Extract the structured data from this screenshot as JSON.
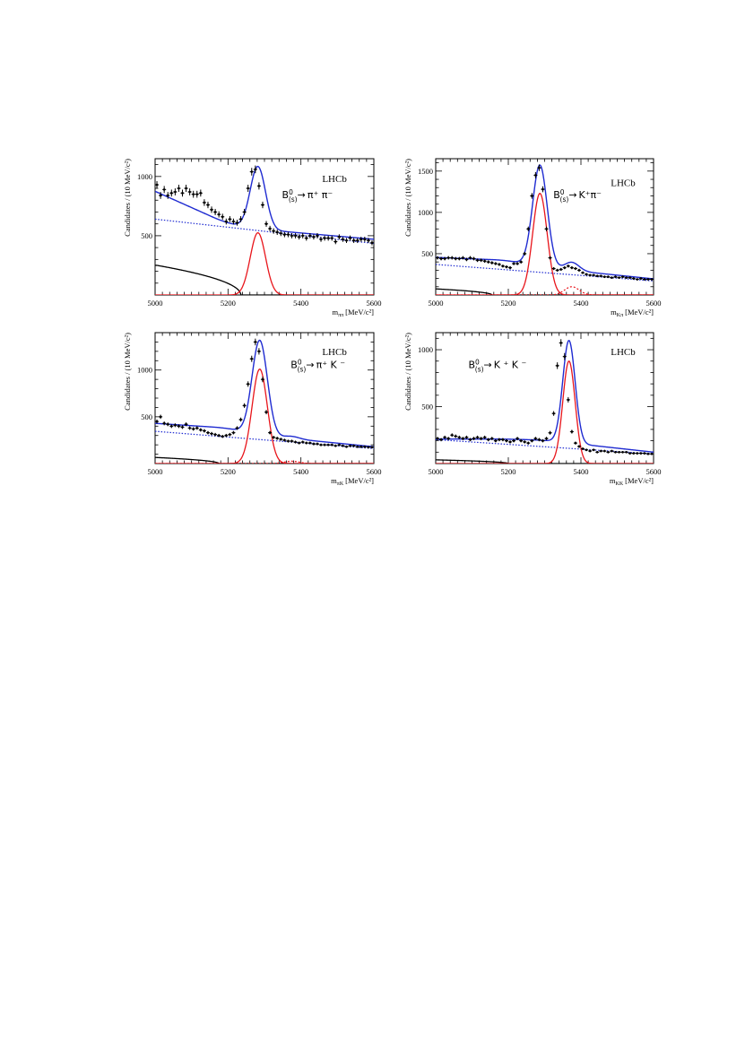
{
  "chart_data": [
    {
      "type": "scatter",
      "panel": "top-left",
      "experiment_label": "LHCb",
      "decay": {
        "parent": "B",
        "sup": "0",
        "sub": "(s)",
        "arrow": "→",
        "products": "π⁺ π⁻"
      },
      "ylabel": "Candidates / (10 MeV/c²)",
      "xlabel": {
        "var": "m",
        "sub": "ππ",
        "unit": "[MeV/c²]"
      },
      "xlim": [
        5000,
        5600
      ],
      "ylim": [
        0,
        1150
      ],
      "xticks": [
        "5000",
        "5200",
        "5400",
        "5600"
      ],
      "yticks": [
        "500",
        "1000"
      ],
      "data_points": {
        "x": [
          5005,
          5015,
          5025,
          5035,
          5045,
          5055,
          5065,
          5075,
          5085,
          5095,
          5105,
          5115,
          5125,
          5135,
          5145,
          5155,
          5165,
          5175,
          5185,
          5195,
          5205,
          5215,
          5225,
          5235,
          5245,
          5255,
          5265,
          5275,
          5285,
          5295,
          5305,
          5315,
          5325,
          5335,
          5345,
          5355,
          5365,
          5375,
          5385,
          5395,
          5405,
          5415,
          5425,
          5435,
          5445,
          5455,
          5465,
          5475,
          5485,
          5495,
          5505,
          5515,
          5525,
          5535,
          5545,
          5555,
          5565,
          5575,
          5585,
          5595
        ],
        "y": [
          930,
          840,
          890,
          840,
          860,
          870,
          900,
          860,
          900,
          870,
          850,
          850,
          860,
          780,
          760,
          720,
          700,
          680,
          660,
          620,
          640,
          620,
          610,
          640,
          700,
          900,
          1040,
          1060,
          920,
          760,
          600,
          560,
          540,
          530,
          520,
          510,
          510,
          500,
          500,
          490,
          500,
          480,
          500,
          490,
          500,
          470,
          480,
          480,
          480,
          450,
          490,
          470,
          460,
          480,
          460,
          460,
          470,
          470,
          460,
          440
        ]
      },
      "curves": {
        "total": {
          "bg": [
            875,
            600,
            550,
            470
          ],
          "peak_mean": 5282,
          "peak_sigma": 21,
          "peak_amp": 525
        },
        "combinatorial": {
          "start": 640,
          "end": 435
        },
        "partial": {
          "amp": 250,
          "endpoint": 5235
        },
        "signal": {
          "mean": 5282,
          "sigma": 21,
          "amp": 525
        },
        "secondary_signal": {
          "mean": 5370,
          "sigma": 21,
          "amp": 0
        }
      },
      "legend": {
        "signal": "red",
        "total": "blue",
        "combinatorial": "blue dotted",
        "partial": "black"
      }
    },
    {
      "type": "scatter",
      "panel": "top-right",
      "experiment_label": "LHCb",
      "decay": {
        "parent": "B",
        "sup": "0",
        "sub": "(s)",
        "arrow": "→",
        "products": "K⁺π⁻"
      },
      "ylabel": "Candidates / (10 MeV/c²)",
      "xlabel": {
        "var": "m",
        "sub": "Kπ",
        "unit": "[MeV/c²]"
      },
      "xlim": [
        5000,
        5600
      ],
      "ylim": [
        0,
        1650
      ],
      "xticks": [
        "5000",
        "5200",
        "5400",
        "5600"
      ],
      "yticks": [
        "500",
        "1000",
        "1500"
      ],
      "data_points": {
        "x": [
          5005,
          5015,
          5025,
          5035,
          5045,
          5055,
          5065,
          5075,
          5085,
          5095,
          5105,
          5115,
          5125,
          5135,
          5145,
          5155,
          5165,
          5175,
          5185,
          5195,
          5205,
          5215,
          5225,
          5235,
          5245,
          5255,
          5265,
          5275,
          5285,
          5295,
          5305,
          5315,
          5325,
          5335,
          5345,
          5355,
          5365,
          5375,
          5385,
          5395,
          5405,
          5415,
          5425,
          5435,
          5445,
          5455,
          5465,
          5475,
          5485,
          5495,
          5505,
          5515,
          5525,
          5535,
          5545,
          5555,
          5565,
          5575,
          5585,
          5595
        ],
        "y": [
          450,
          440,
          440,
          450,
          450,
          440,
          440,
          450,
          430,
          450,
          440,
          420,
          420,
          410,
          400,
          390,
          380,
          370,
          350,
          340,
          330,
          380,
          380,
          400,
          500,
          800,
          1200,
          1450,
          1540,
          1280,
          800,
          450,
          320,
          300,
          310,
          330,
          350,
          330,
          320,
          300,
          270,
          250,
          240,
          240,
          230,
          230,
          220,
          220,
          210,
          220,
          210,
          220,
          210,
          210,
          200,
          190,
          200,
          190,
          190,
          190
        ]
      },
      "curves": {
        "total": {
          "bg": [
            455,
            420,
            330,
            195
          ],
          "peak_mean": 5287,
          "peak_sigma": 20,
          "peak_amp": 1230
        },
        "combinatorial": {
          "start": 370,
          "end": 170
        },
        "partial": {
          "amp": 90,
          "endpoint": 5155
        },
        "signal": {
          "mean": 5287,
          "sigma": 20,
          "amp": 1230
        },
        "secondary_signal": {
          "mean": 5375,
          "sigma": 20,
          "amp": 100
        }
      }
    },
    {
      "type": "scatter",
      "panel": "bottom-left",
      "experiment_label": "LHCb",
      "decay": {
        "parent": "B",
        "sup": "0",
        "sub": "(s)",
        "arrow": "→",
        "products": "π⁺ K ⁻"
      },
      "ylabel": "Candidates / (10 MeV/c²)",
      "xlabel": {
        "var": "m",
        "sub": "πK",
        "unit": "[MeV/c²]"
      },
      "xlim": [
        5000,
        5600
      ],
      "ylim": [
        0,
        1400
      ],
      "xticks": [
        "5000",
        "5200",
        "5400",
        "5600"
      ],
      "yticks": [
        "500",
        "1000"
      ],
      "data_points": {
        "x": [
          5005,
          5015,
          5025,
          5035,
          5045,
          5055,
          5065,
          5075,
          5085,
          5095,
          5105,
          5115,
          5125,
          5135,
          5145,
          5155,
          5165,
          5175,
          5185,
          5195,
          5205,
          5215,
          5225,
          5235,
          5245,
          5255,
          5265,
          5275,
          5285,
          5295,
          5305,
          5315,
          5325,
          5335,
          5345,
          5355,
          5365,
          5375,
          5385,
          5395,
          5405,
          5415,
          5425,
          5435,
          5445,
          5455,
          5465,
          5475,
          5485,
          5495,
          5505,
          5515,
          5525,
          5535,
          5545,
          5555,
          5565,
          5575,
          5585,
          5595
        ],
        "y": [
          450,
          500,
          430,
          420,
          400,
          410,
          400,
          390,
          420,
          380,
          370,
          380,
          360,
          350,
          330,
          320,
          310,
          300,
          290,
          300,
          310,
          330,
          380,
          470,
          620,
          850,
          1120,
          1300,
          1200,
          900,
          550,
          330,
          280,
          270,
          260,
          250,
          240,
          240,
          230,
          220,
          230,
          220,
          220,
          210,
          210,
          200,
          200,
          200,
          200,
          190,
          200,
          190,
          180,
          190,
          190,
          180,
          180,
          180,
          175,
          175
        ]
      },
      "curves": {
        "total": {
          "bg": [
            430,
            380,
            295,
            180
          ],
          "peak_mean": 5287,
          "peak_sigma": 21,
          "peak_amp": 1010
        },
        "combinatorial": {
          "start": 345,
          "end": 160
        },
        "partial": {
          "amp": 75,
          "endpoint": 5175
        },
        "signal": {
          "mean": 5287,
          "sigma": 21,
          "amp": 1010
        },
        "secondary_signal": {
          "mean": 5375,
          "sigma": 21,
          "amp": 25
        }
      }
    },
    {
      "type": "scatter",
      "panel": "bottom-right",
      "experiment_label": "LHCb",
      "decay": {
        "parent": "B",
        "sup": "0",
        "sub": "(s)",
        "arrow": "→",
        "products": "K ⁺ K ⁻"
      },
      "ylabel": "Candidates / (10 MeV/c²)",
      "xlabel": {
        "var": "m",
        "sub": "KK",
        "unit": "[MeV/c²]"
      },
      "xlim": [
        5000,
        5600
      ],
      "ylim": [
        0,
        1150
      ],
      "xticks": [
        "5000",
        "5200",
        "5400",
        "5600"
      ],
      "yticks": [
        "500",
        "1000"
      ],
      "data_points": {
        "x": [
          5005,
          5015,
          5025,
          5035,
          5045,
          5055,
          5065,
          5075,
          5085,
          5095,
          5105,
          5115,
          5125,
          5135,
          5145,
          5155,
          5165,
          5175,
          5185,
          5195,
          5205,
          5215,
          5225,
          5235,
          5245,
          5255,
          5265,
          5275,
          5285,
          5295,
          5305,
          5315,
          5325,
          5335,
          5345,
          5355,
          5365,
          5375,
          5385,
          5395,
          5405,
          5415,
          5425,
          5435,
          5445,
          5455,
          5465,
          5475,
          5485,
          5495,
          5505,
          5515,
          5525,
          5535,
          5545,
          5555,
          5565,
          5575,
          5585,
          5595
        ],
        "y": [
          220,
          210,
          230,
          220,
          250,
          240,
          230,
          220,
          230,
          210,
          220,
          230,
          220,
          230,
          210,
          220,
          200,
          210,
          210,
          200,
          190,
          200,
          220,
          200,
          190,
          180,
          200,
          220,
          210,
          200,
          220,
          270,
          440,
          860,
          1060,
          940,
          560,
          280,
          180,
          150,
          130,
          120,
          110,
          120,
          100,
          110,
          110,
          100,
          110,
          100,
          100,
          100,
          100,
          90,
          90,
          90,
          90,
          90,
          85,
          85
        ]
      },
      "curves": {
        "total": {
          "bg": [
            215,
            215,
            205,
            100
          ],
          "peak_mean": 5367,
          "peak_sigma": 17,
          "peak_amp": 900
        },
        "combinatorial": {
          "start": 210,
          "end": 85
        },
        "partial": {
          "amp": 35,
          "endpoint": 5200
        },
        "signal": {
          "mean": 5367,
          "sigma": 17,
          "amp": 900
        },
        "secondary_signal": {
          "mean": 5280,
          "sigma": 17,
          "amp": 0
        }
      }
    }
  ],
  "colors": {
    "signal": "#e8151b",
    "total": "#1f2bd1",
    "combinatorial": "#1f2bd1",
    "partial": "#000000",
    "data": "#000000",
    "frame": "#000000"
  }
}
